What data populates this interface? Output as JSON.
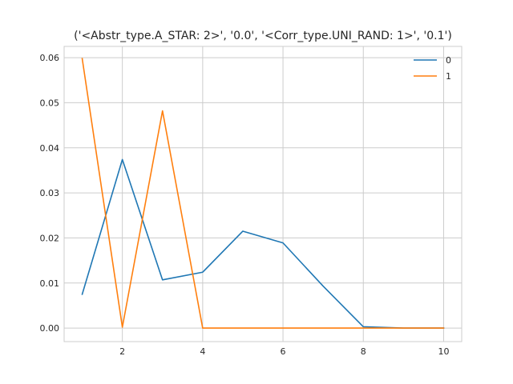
{
  "chart_data": {
    "type": "line",
    "title": "('<Abstr_type.A_STAR: 2>', '0.0', '<Corr_type.UNI_RAND: 1>', '0.1')",
    "xlabel": "",
    "ylabel": "",
    "x": [
      1,
      2,
      3,
      4,
      5,
      6,
      7,
      8,
      9,
      10
    ],
    "xlim": [
      0.55,
      10.45
    ],
    "ylim": [
      -0.003,
      0.0625
    ],
    "xticks": [
      2,
      4,
      6,
      8,
      10
    ],
    "yticks": [
      0.0,
      0.01,
      0.02,
      0.03,
      0.04,
      0.05,
      0.06
    ],
    "xtick_labels": [
      "2",
      "4",
      "6",
      "8",
      "10"
    ],
    "ytick_labels": [
      "0.00",
      "0.01",
      "0.02",
      "0.03",
      "0.04",
      "0.05",
      "0.06"
    ],
    "grid": true,
    "legend_position": "top-right",
    "series": [
      {
        "name": "0",
        "color": "#1f77b4",
        "values": [
          0.0075,
          0.0374,
          0.0107,
          0.0124,
          0.0215,
          0.0189,
          0.0093,
          0.0003,
          0.0,
          0.0
        ]
      },
      {
        "name": "1",
        "color": "#ff7f0e",
        "values": [
          0.0598,
          0.0002,
          0.0482,
          0.0,
          0.0,
          0.0,
          0.0,
          0.0,
          0.0,
          0.0
        ]
      }
    ]
  }
}
